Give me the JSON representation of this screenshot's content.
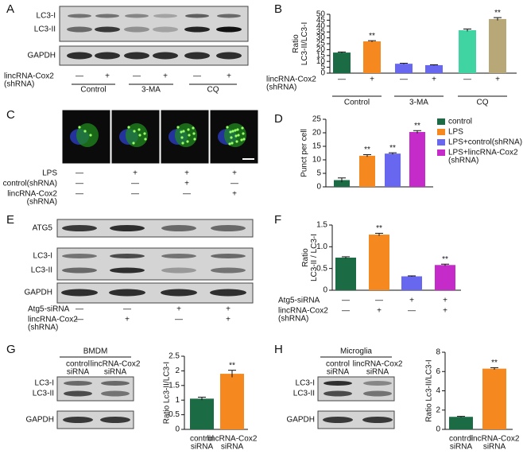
{
  "panels": {
    "A": {
      "letter": "A",
      "bands": [
        "LC3-I",
        "LC3-II",
        "GAPDH"
      ],
      "rows": [
        {
          "label": [
            "lincRNA-Cox2",
            "(shRNA)"
          ],
          "signs": [
            "—",
            "+",
            "—",
            "+",
            "—",
            "+"
          ]
        }
      ],
      "groups": [
        "Control",
        "3-MA",
        "CQ"
      ]
    },
    "C": {
      "letter": "C",
      "rows": [
        {
          "label": [
            "LPS"
          ],
          "signs": [
            "—",
            "+",
            "+",
            "+"
          ]
        },
        {
          "label": [
            "control(shRNA)"
          ],
          "signs": [
            "—",
            "—",
            "+",
            "—"
          ]
        },
        {
          "label": [
            "lincRNA-Cox2",
            "(shRNA)"
          ],
          "signs": [
            "—",
            "—",
            "—",
            "+"
          ]
        }
      ]
    },
    "E": {
      "letter": "E",
      "bands": [
        "ATG5",
        "LC3-I",
        "LC3-II",
        "GAPDH"
      ],
      "rows": [
        {
          "label": [
            "Atg5-siRNA"
          ],
          "signs": [
            "—",
            "—",
            "+",
            "+"
          ]
        },
        {
          "label": [
            "lincRNA-Cox2",
            "(shRNA)"
          ],
          "signs": [
            "—",
            "+",
            "—",
            "+"
          ]
        }
      ]
    },
    "G": {
      "letter": "G",
      "title": "BMDM",
      "lanes": [
        [
          "control",
          "siRNA"
        ],
        [
          "lincRNA-Cox2",
          "siRNA"
        ]
      ],
      "bands": [
        "LC3-I",
        "LC3-II",
        "GAPDH"
      ]
    },
    "H": {
      "letter": "H",
      "title": "Microglia",
      "lanes": [
        [
          "control",
          "siRNA"
        ],
        [
          "lincRNA-Cox2",
          "siRNA"
        ]
      ],
      "bands": [
        "LC3-I",
        "LC3-II",
        "GAPDH"
      ]
    }
  },
  "chart_data": [
    {
      "type": "bar",
      "panel": "B",
      "y_label": [
        "Ratio",
        "LC3-II/LC3-I"
      ],
      "values": [
        17.5,
        27,
        8,
        6.8,
        36.5,
        46
      ],
      "errors": [
        0.5,
        0.6,
        0.4,
        0.3,
        1,
        1.2
      ],
      "colors": [
        "#1b6b45",
        "#f5891f",
        "#6767f0",
        "#6767f0",
        "#3fd4a2",
        "#b8a878"
      ],
      "ylim": [
        0,
        50
      ],
      "yticks": [
        0,
        5,
        10,
        15,
        20,
        25,
        30,
        35,
        40,
        45,
        50
      ],
      "significance": [
        null,
        "**",
        null,
        null,
        null,
        "**"
      ],
      "rows": [
        {
          "label": [
            "lincRNA-Cox2",
            "(shRNA)"
          ],
          "signs": [
            "—",
            "+",
            "—",
            "+",
            "—",
            "+"
          ]
        }
      ],
      "groups": [
        "Control",
        "3-MA",
        "CQ"
      ]
    },
    {
      "type": "bar",
      "panel": "D",
      "y_label": [
        "Punct per cell"
      ],
      "values": [
        2.5,
        11.5,
        12.3,
        20.3
      ],
      "errors": [
        0.8,
        0.4,
        0.3,
        0.5
      ],
      "colors": [
        "#1b6b45",
        "#f5891f",
        "#6767f0",
        "#c42bc8"
      ],
      "ylim": [
        0,
        25
      ],
      "yticks": [
        0,
        5,
        10,
        15,
        20,
        25
      ],
      "significance": [
        null,
        "**",
        "**",
        "**"
      ],
      "legend": [
        [
          "control"
        ],
        [
          "LPS"
        ],
        [
          "LPS+control(shRNA)"
        ],
        [
          "LPS+lincRNA-Cox2",
          "(shRNA)"
        ]
      ]
    },
    {
      "type": "bar",
      "panel": "F",
      "y_label": [
        "Ratio",
        "LC3-II / LC3-I"
      ],
      "values": [
        0.75,
        1.28,
        0.32,
        0.58
      ],
      "errors": [
        0.02,
        0.03,
        0.01,
        0.02
      ],
      "colors": [
        "#1b6b45",
        "#f5891f",
        "#6767f0",
        "#c42bc8"
      ],
      "ylim": [
        0,
        1.5
      ],
      "yticks": [
        0,
        0.5,
        {
          "value": 1,
          "label": "1.0"
        },
        1.5
      ],
      "significance": [
        null,
        "**",
        null,
        "**"
      ],
      "rows": [
        {
          "label": [
            "Atg5-siRNA"
          ],
          "signs": [
            "—",
            "—",
            "+",
            "+"
          ]
        },
        {
          "label": [
            "lincRNA-Cox2",
            "(shRNA)"
          ],
          "signs": [
            "—",
            "+",
            "—",
            "+"
          ]
        }
      ]
    },
    {
      "type": "bar",
      "panel": "G",
      "y_label": [
        "Ratio Lc3-II/LC3-I"
      ],
      "categories": [
        [
          "control",
          "siRNA"
        ],
        [
          "lincRNA-Cox2",
          "siRNA"
        ]
      ],
      "values": [
        1.05,
        1.9
      ],
      "errors": [
        0.05,
        0.12
      ],
      "colors": [
        "#1b6b45",
        "#f5891f"
      ],
      "ylim": [
        0,
        2.5
      ],
      "yticks": [
        0,
        0.5,
        1,
        1.5,
        2,
        2.5
      ],
      "significance": [
        null,
        "**"
      ]
    },
    {
      "type": "bar",
      "panel": "H",
      "y_label": [
        "Ratio Lc3-II/LC3-I"
      ],
      "categories": [
        [
          "control",
          "siRNA"
        ],
        [
          "lincRNA-Cox2",
          "siRNA"
        ]
      ],
      "values": [
        1.3,
        6.3
      ],
      "errors": [
        0.05,
        0.1
      ],
      "colors": [
        "#1b6b45",
        "#f5891f"
      ],
      "ylim": [
        0,
        8
      ],
      "yticks": [
        0,
        2,
        4,
        6,
        8
      ],
      "significance": [
        null,
        "**"
      ]
    }
  ]
}
